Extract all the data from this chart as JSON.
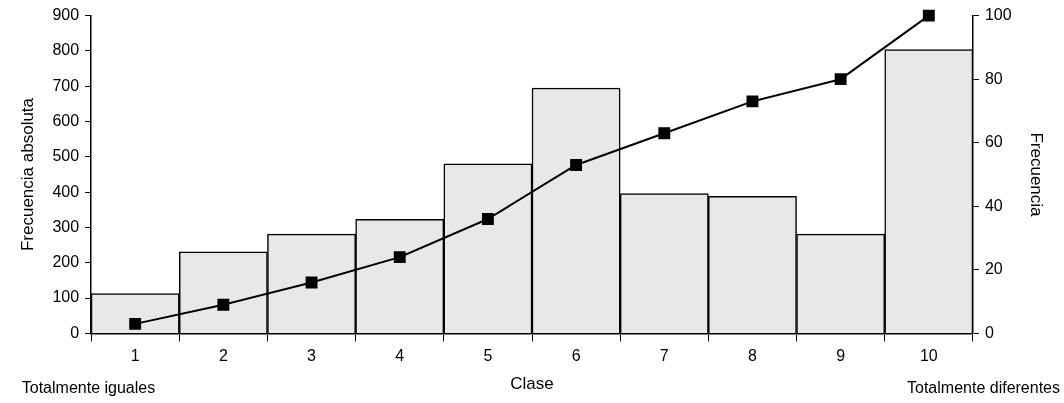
{
  "chart_data": {
    "type": "bar",
    "xlabel": "Clase",
    "ylabel": "Frecuencia absoluta",
    "y2label": "Frecuencia",
    "categories": [
      "1",
      "2",
      "3",
      "4",
      "5",
      "6",
      "7",
      "8",
      "9",
      "10"
    ],
    "series": [
      {
        "color": "#e8e8e8",
        "values": [
          113,
          231,
          281,
          323,
          480,
          695,
          396,
          388,
          281,
          804
        ]
      },
      {
        "type": "line",
        "axis": "y2",
        "color": "#000000",
        "marker": "square",
        "line_style": "solid",
        "values": [
          3,
          9,
          16,
          24,
          36,
          53,
          63,
          73,
          80,
          100
        ]
      }
    ],
    "ylim": [
      0,
      900
    ],
    "yticks": [
      0,
      100,
      200,
      300,
      400,
      500,
      600,
      700,
      800,
      900
    ],
    "y2lim": [
      0,
      100
    ],
    "y2ticks": [
      0,
      20,
      40,
      60,
      80,
      100
    ],
    "grid": false,
    "legend": false,
    "annotations": [
      "Totalmente iguales",
      "Totalmente diferentes"
    ]
  }
}
